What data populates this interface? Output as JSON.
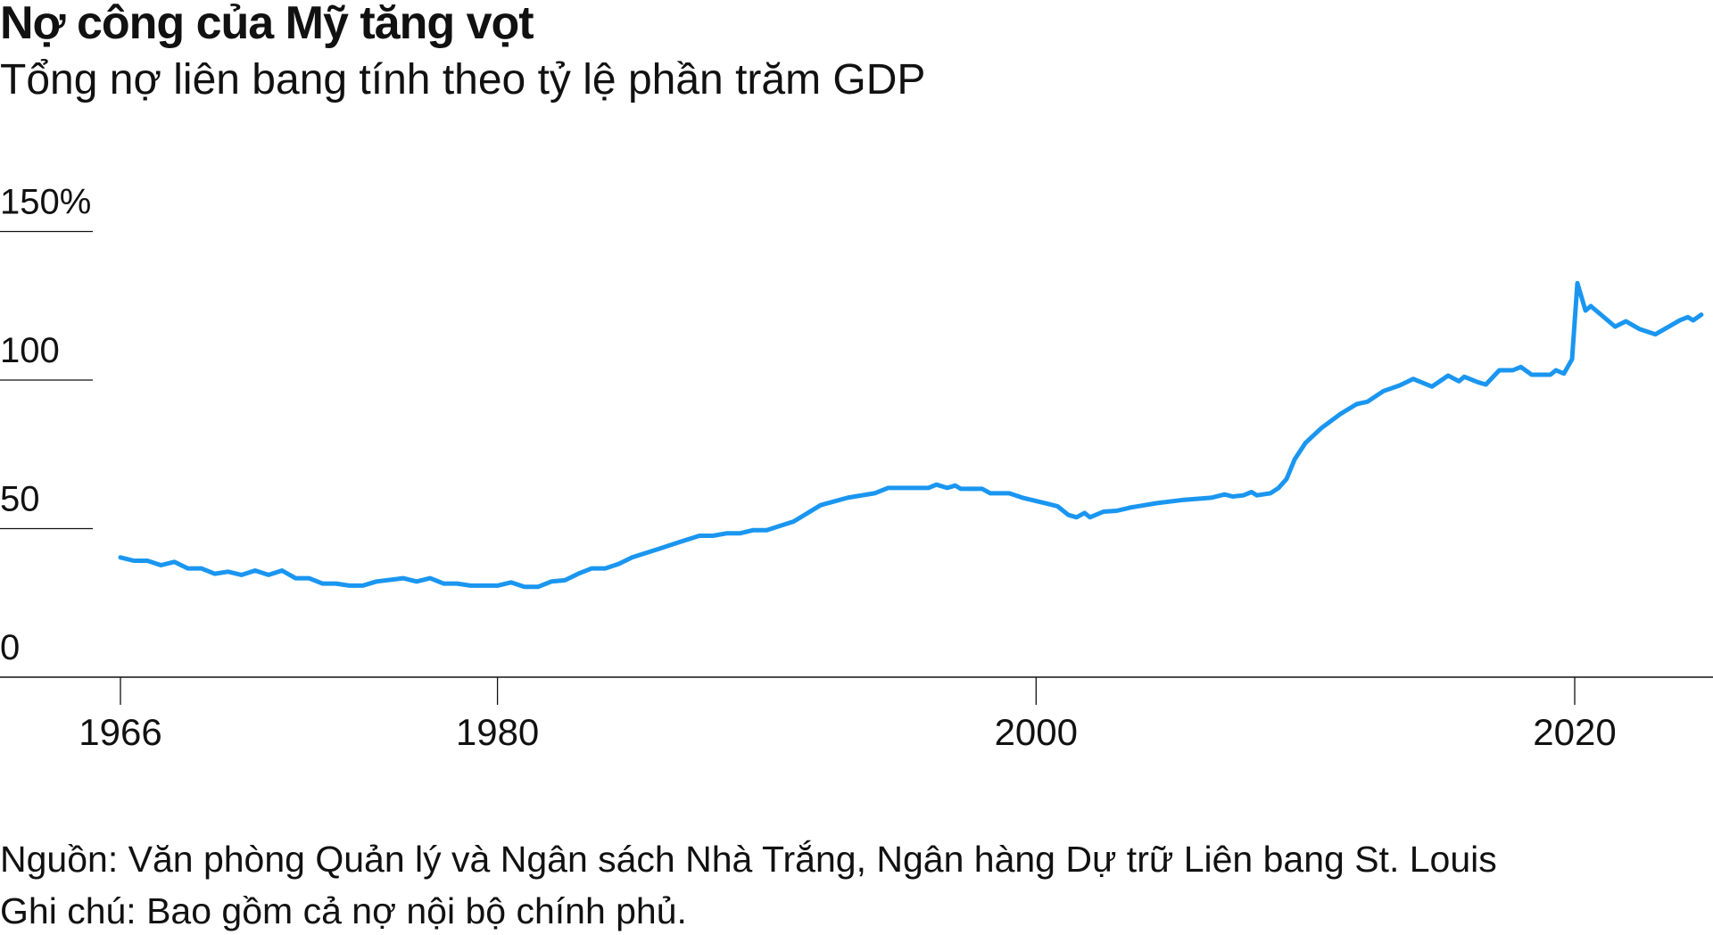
{
  "chart_data": {
    "type": "line",
    "title": "Nợ công của Mỹ tăng vọt",
    "subtitle": "Tổng nợ liên bang tính theo tỷ lệ phần trăm GDP",
    "xlabel": "",
    "ylabel": "",
    "xlim": [
      1964.9,
      2025.3
    ],
    "ylim": [
      0,
      150
    ],
    "y_ticks": [
      {
        "value": 150,
        "label": "150%"
      },
      {
        "value": 100,
        "label": "100"
      },
      {
        "value": 50,
        "label": "50"
      },
      {
        "value": 0,
        "label": "0"
      }
    ],
    "x_ticks": [
      {
        "value": 1966,
        "label": "1966"
      },
      {
        "value": 1980,
        "label": "1980"
      },
      {
        "value": 2000,
        "label": "2000"
      },
      {
        "value": 2020,
        "label": "2020"
      }
    ],
    "grid": "horizontal-left-stubs",
    "color": "#1a96f0",
    "series": [
      {
        "name": "Tổng nợ liên bang (% GDP)",
        "x": [
          1966,
          1966.5,
          1967,
          1967.5,
          1968,
          1968.5,
          1969,
          1969.5,
          1970,
          1970.5,
          1971,
          1971.5,
          1972,
          1972.5,
          1973,
          1973.5,
          1974,
          1974.5,
          1975,
          1975.5,
          1976.5,
          1977,
          1977.5,
          1978,
          1978.5,
          1979,
          1980,
          1980.5,
          1981,
          1981.5,
          1982,
          1982.5,
          1983,
          1983.5,
          1984,
          1984.5,
          1985,
          1986,
          1987,
          1987.5,
          1988,
          1988.5,
          1989,
          1989.5,
          1990,
          1991,
          1992,
          1993,
          1994,
          1994.5,
          1996,
          1996.3,
          1996.7,
          1997,
          1997.2,
          1998,
          1998.3,
          1999,
          1999.5,
          2000.5,
          2000.8,
          2001.2,
          2001.5,
          2001.8,
          2002,
          2002.5,
          2003,
          2003.5,
          2004.5,
          2005.5,
          2006.5,
          2007,
          2007.3,
          2007.7,
          2008,
          2008.2,
          2008.7,
          2009,
          2009.3,
          2009.6,
          2010,
          2010.6,
          2011.3,
          2011.9,
          2012.3,
          2012.9,
          2013.5,
          2014,
          2014.7,
          2015.3,
          2015.7,
          2015.9,
          2016.4,
          2016.7,
          2017.2,
          2017.7,
          2018,
          2018.4,
          2019.1,
          2019.3,
          2019.6,
          2019.9,
          2020.1,
          2020.4,
          2020.6,
          2021.5,
          2021.9,
          2022.4,
          2023.0,
          2023.9,
          2024.2,
          2024.4,
          2024.7
        ],
        "y": [
          40.3,
          39.2,
          39.2,
          37.7,
          38.8,
          36.6,
          36.6,
          34.8,
          35.5,
          34.4,
          35.9,
          34.4,
          35.9,
          33.3,
          33.3,
          31.5,
          31.5,
          30.8,
          30.8,
          32.2,
          33.3,
          32.2,
          33.3,
          31.5,
          31.5,
          30.8,
          30.8,
          31.9,
          30.4,
          30.4,
          32.2,
          32.6,
          34.8,
          36.6,
          36.6,
          38.1,
          40.3,
          43.2,
          46.2,
          47.6,
          47.6,
          48.4,
          48.4,
          49.5,
          49.5,
          52.4,
          57.9,
          60.4,
          61.9,
          63.7,
          63.7,
          64.8,
          63.7,
          64.5,
          63.4,
          63.4,
          61.9,
          61.9,
          60.4,
          58.2,
          57.5,
          54.6,
          53.8,
          55.3,
          53.8,
          55.7,
          56.0,
          57.1,
          58.6,
          59.7,
          60.4,
          61.5,
          60.8,
          61.2,
          62.3,
          61.2,
          61.9,
          63.7,
          66.7,
          73.3,
          78.8,
          83.9,
          88.6,
          91.9,
          92.7,
          96.3,
          98.2,
          100.4,
          97.8,
          101.5,
          99.6,
          101.1,
          99.3,
          98.5,
          103.3,
          103.3,
          104.4,
          101.8,
          101.8,
          103.3,
          102.2,
          107.0,
          132.6,
          123.4,
          124.9,
          118.0,
          119.8,
          117.2,
          115.4,
          120.1,
          121.2,
          120.1,
          122.0
        ]
      }
    ]
  },
  "footer": {
    "source": "Nguồn: Văn phòng Quản lý và Ngân sách Nhà Trắng, Ngân hàng Dự trữ Liên bang St. Louis",
    "note": "Ghi chú: Bao gồm cả nợ nội bộ chính phủ."
  }
}
